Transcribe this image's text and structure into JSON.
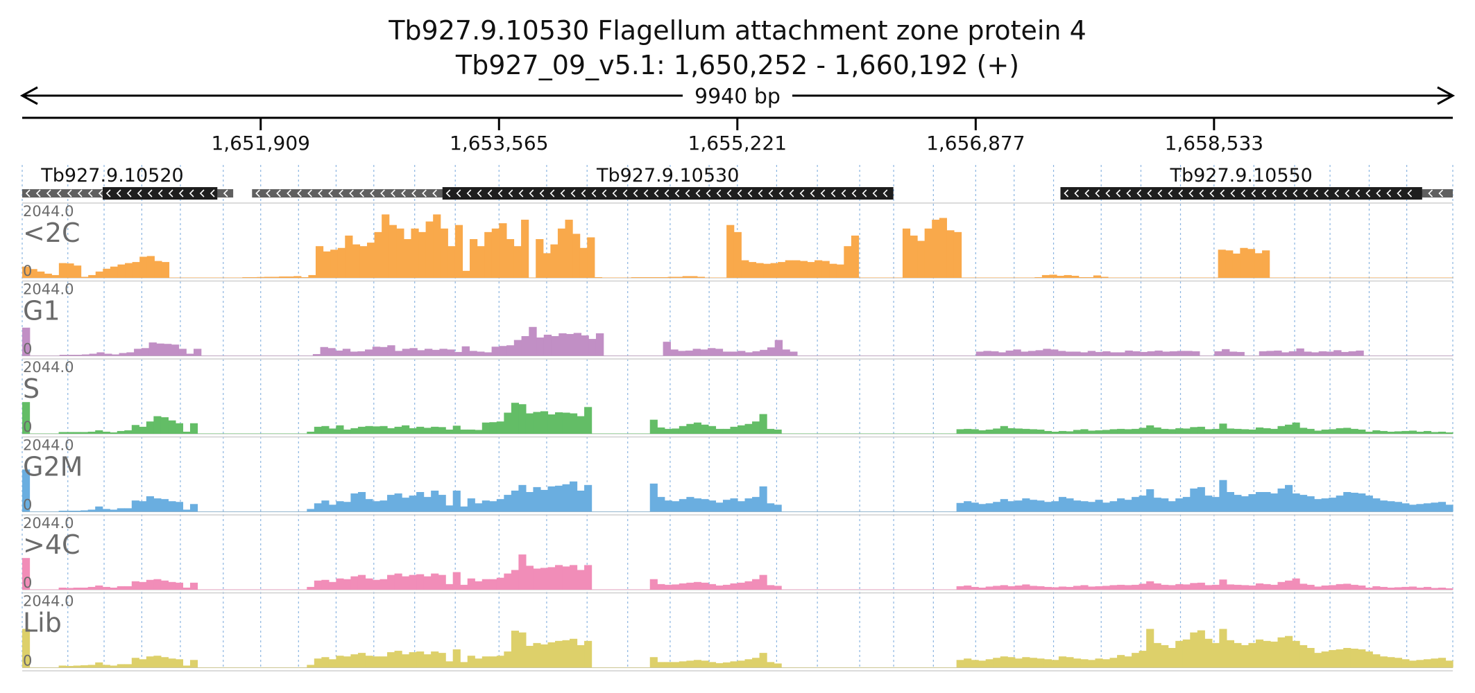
{
  "header": {
    "title": "Tb927.9.10530  Flagellum attachment zone protein 4",
    "subtitle": "Tb927_09_v5.1: 1,650,252 - 1,660,192 (+)"
  },
  "chart_data": {
    "type": "area",
    "chromosome": "Tb927_09_v5.1",
    "xlim": [
      1650252,
      1660192
    ],
    "span_label": "9940 bp",
    "ticks": [
      1651909,
      1653565,
      1655221,
      1656877,
      1658533
    ],
    "tick_labels": [
      "1,651,909",
      "1,653,565",
      "1,655,221",
      "1,656,877",
      "1,658,533"
    ],
    "gridlines": [
      1650252,
      1650569,
      1650821,
      1651083,
      1651351,
      1651649,
      1651909,
      1652172,
      1652433,
      1652695,
      1652979,
      1653261,
      1653565,
      1653896,
      1654177,
      1654459,
      1654754,
      1655025,
      1655221,
      1655494,
      1655777,
      1656071,
      1656307,
      1656583,
      1656877,
      1657144,
      1657418,
      1657749,
      1658025,
      1658300,
      1658533,
      1658810,
      1659093,
      1659339,
      1659611,
      1659872,
      1660192
    ],
    "genes": [
      {
        "name": "Tb927.9.10520",
        "strand": "-",
        "utr_start": 1650252,
        "utr_end": 1651718,
        "cds_start": 1650811,
        "cds_end": 1651608
      },
      {
        "name": "Tb927.9.10530",
        "strand": "-",
        "utr_start": 1651849,
        "utr_end": 1656274,
        "cds_start": 1653172,
        "cds_end": 1656305
      },
      {
        "name": "Tb927.9.10550",
        "strand": "-",
        "utr_start": 1657466,
        "utr_end": 1660192,
        "cds_start": 1657466,
        "cds_end": 1659979
      }
    ],
    "ylim": [
      0,
      2044.0
    ],
    "series": [
      {
        "name": "<2C",
        "color": "#f9a94b",
        "values": [
          320,
          250,
          180,
          120,
          80,
          420,
          410,
          350,
          30,
          80,
          180,
          260,
          320,
          380,
          420,
          450,
          600,
          620,
          480,
          450,
          10,
          10,
          10,
          10,
          10,
          10,
          10,
          10,
          10,
          10,
          20,
          20,
          25,
          30,
          30,
          40,
          40,
          50,
          20,
          80,
          900,
          750,
          800,
          850,
          1200,
          950,
          900,
          1000,
          1300,
          1800,
          1500,
          1400,
          1100,
          1400,
          1300,
          1600,
          1800,
          1400,
          900,
          1500,
          200,
          1100,
          900,
          1300,
          1400,
          1550,
          1100,
          900,
          1650,
          10,
          1100,
          700,
          950,
          1400,
          1650,
          1250,
          850,
          1150,
          20,
          10,
          10,
          10,
          10,
          20,
          20,
          20,
          20,
          20,
          30,
          30,
          50,
          50,
          30,
          10,
          10,
          10,
          1500,
          1300,
          500,
          450,
          420,
          400,
          420,
          450,
          500,
          500,
          480,
          450,
          500,
          480,
          400,
          380,
          900,
          1200,
          10,
          10,
          10,
          10,
          10,
          10,
          1400,
          1200,
          1050,
          1400,
          1650,
          1700,
          1350,
          1300,
          10,
          10,
          10,
          10,
          10,
          10,
          10,
          10,
          10,
          10,
          20,
          80,
          90,
          60,
          80,
          60,
          20,
          20,
          70,
          30,
          10,
          10,
          10,
          10,
          10,
          10,
          10,
          10,
          10,
          10,
          10,
          10,
          10,
          10,
          10,
          800,
          780,
          690,
          850,
          820,
          700,
          780,
          10,
          10,
          10,
          10,
          10,
          10,
          10,
          10,
          10,
          10,
          10,
          10,
          10,
          10,
          10,
          10,
          10,
          10,
          10,
          10,
          10,
          10,
          10,
          10,
          10
        ]
      },
      {
        "name": "G1",
        "color": "#c18fc5",
        "values": [
          800,
          10,
          10,
          10,
          10,
          30,
          30,
          30,
          40,
          60,
          100,
          60,
          40,
          80,
          100,
          200,
          220,
          380,
          350,
          340,
          320,
          200,
          60,
          200,
          10,
          10,
          10,
          10,
          10,
          10,
          10,
          10,
          10,
          10,
          10,
          10,
          10,
          10,
          10,
          50,
          250,
          220,
          150,
          200,
          120,
          130,
          180,
          260,
          250,
          300,
          140,
          200,
          220,
          160,
          200,
          170,
          200,
          180,
          110,
          270,
          140,
          120,
          100,
          260,
          280,
          300,
          450,
          560,
          820,
          520,
          600,
          560,
          640,
          620,
          650,
          580,
          480,
          640,
          10,
          10,
          10,
          10,
          10,
          10,
          10,
          10,
          400,
          180,
          140,
          150,
          200,
          180,
          220,
          200,
          120,
          120,
          140,
          100,
          130,
          170,
          240,
          450,
          180,
          120,
          10,
          10,
          10,
          10,
          10,
          10,
          10,
          10,
          10,
          10,
          10,
          10,
          10,
          10,
          10,
          10,
          10,
          10,
          10,
          10,
          10,
          10,
          10,
          10,
          120,
          140,
          130,
          100,
          150,
          180,
          120,
          140,
          160,
          200,
          180,
          140,
          120,
          120,
          100,
          140,
          110,
          130,
          100,
          100,
          150,
          130,
          110,
          130,
          150,
          120,
          130,
          140,
          140,
          130,
          10,
          10,
          130,
          190,
          120,
          110,
          10,
          10,
          130,
          140,
          150,
          100,
          130,
          210,
          120,
          100,
          130,
          120,
          160,
          110,
          130,
          150,
          10,
          10,
          10,
          10,
          10,
          10,
          10,
          10,
          10,
          10,
          10,
          10
        ]
      },
      {
        "name": "S",
        "color": "#63bd66",
        "values": [
          900,
          10,
          10,
          10,
          10,
          50,
          50,
          50,
          50,
          60,
          100,
          60,
          40,
          80,
          100,
          250,
          200,
          350,
          500,
          470,
          380,
          300,
          60,
          300,
          10,
          10,
          10,
          10,
          10,
          10,
          10,
          10,
          10,
          10,
          10,
          10,
          10,
          10,
          10,
          60,
          200,
          220,
          150,
          240,
          120,
          160,
          200,
          220,
          210,
          220,
          160,
          200,
          240,
          160,
          200,
          170,
          200,
          190,
          120,
          230,
          120,
          120,
          110,
          320,
          330,
          350,
          600,
          880,
          840,
          580,
          620,
          640,
          550,
          610,
          600,
          580,
          500,
          760,
          10,
          10,
          10,
          10,
          10,
          10,
          10,
          10,
          400,
          180,
          140,
          150,
          220,
          280,
          320,
          260,
          220,
          140,
          140,
          200,
          240,
          280,
          350,
          560,
          140,
          120,
          10,
          10,
          10,
          10,
          10,
          10,
          10,
          10,
          10,
          10,
          10,
          10,
          10,
          10,
          10,
          10,
          10,
          10,
          10,
          10,
          10,
          10,
          10,
          10,
          130,
          140,
          130,
          100,
          120,
          150,
          220,
          160,
          150,
          140,
          130,
          120,
          80,
          60,
          80,
          70,
          110,
          130,
          90,
          100,
          110,
          130,
          140,
          130,
          140,
          170,
          240,
          180,
          140,
          130,
          160,
          150,
          190,
          200,
          130,
          140,
          290,
          150,
          140,
          130,
          120,
          180,
          160,
          140,
          220,
          260,
          320,
          170,
          140,
          90,
          120,
          130,
          160,
          170,
          140,
          120,
          60,
          100,
          80,
          60,
          70,
          80,
          90,
          60,
          80,
          50,
          60,
          40
        ]
      },
      {
        "name": "G2M",
        "color": "#6aaee0",
        "values": [
          1200,
          10,
          10,
          10,
          10,
          30,
          30,
          30,
          40,
          60,
          150,
          80,
          60,
          100,
          100,
          320,
          300,
          440,
          380,
          360,
          300,
          280,
          60,
          220,
          10,
          10,
          10,
          10,
          10,
          10,
          10,
          10,
          10,
          10,
          10,
          10,
          10,
          10,
          10,
          80,
          240,
          320,
          200,
          300,
          280,
          520,
          560,
          360,
          300,
          320,
          480,
          520,
          400,
          460,
          560,
          420,
          600,
          480,
          180,
          600,
          150,
          380,
          240,
          320,
          300,
          360,
          480,
          600,
          760,
          560,
          700,
          620,
          720,
          740,
          780,
          860,
          600,
          760,
          10,
          10,
          10,
          10,
          10,
          10,
          10,
          10,
          800,
          420,
          320,
          300,
          360,
          420,
          380,
          360,
          320,
          260,
          340,
          380,
          300,
          380,
          420,
          720,
          240,
          200,
          10,
          10,
          10,
          10,
          10,
          10,
          10,
          10,
          10,
          10,
          10,
          10,
          10,
          10,
          10,
          10,
          10,
          10,
          10,
          10,
          10,
          10,
          10,
          10,
          250,
          300,
          260,
          220,
          240,
          280,
          360,
          300,
          320,
          380,
          340,
          320,
          280,
          300,
          420,
          380,
          320,
          300,
          280,
          340,
          260,
          300,
          380,
          340,
          420,
          460,
          640,
          400,
          380,
          300,
          380,
          420,
          660,
          700,
          460,
          420,
          900,
          560,
          480,
          440,
          500,
          560,
          560,
          520,
          660,
          760,
          520,
          480,
          440,
          360,
          380,
          400,
          460,
          560,
          540,
          520,
          460,
          380,
          320,
          300,
          280,
          240,
          200,
          220,
          240,
          260,
          280,
          200
        ]
      },
      {
        "name": ">4C",
        "color": "#f18db8",
        "values": [
          900,
          10,
          10,
          10,
          10,
          60,
          50,
          60,
          60,
          80,
          120,
          80,
          60,
          100,
          100,
          240,
          220,
          280,
          300,
          260,
          220,
          200,
          60,
          200,
          10,
          10,
          10,
          10,
          10,
          10,
          10,
          10,
          10,
          10,
          10,
          10,
          10,
          10,
          10,
          80,
          260,
          280,
          220,
          320,
          300,
          380,
          420,
          320,
          280,
          300,
          420,
          460,
          380,
          420,
          440,
          380,
          460,
          420,
          160,
          500,
          140,
          320,
          240,
          300,
          300,
          340,
          460,
          560,
          1000,
          680,
          600,
          620,
          640,
          700,
          660,
          700,
          560,
          700,
          10,
          10,
          10,
          10,
          10,
          10,
          10,
          10,
          300,
          160,
          140,
          150,
          180,
          200,
          220,
          200,
          160,
          120,
          140,
          180,
          200,
          240,
          300,
          420,
          130,
          110,
          10,
          10,
          10,
          10,
          10,
          10,
          10,
          10,
          10,
          10,
          10,
          10,
          10,
          10,
          10,
          10,
          10,
          10,
          10,
          10,
          10,
          10,
          10,
          10,
          100,
          120,
          80,
          60,
          90,
          110,
          130,
          100,
          120,
          150,
          110,
          100,
          80,
          70,
          90,
          80,
          110,
          130,
          90,
          100,
          110,
          130,
          140,
          130,
          140,
          170,
          240,
          180,
          140,
          130,
          160,
          150,
          190,
          200,
          130,
          140,
          290,
          150,
          140,
          130,
          120,
          180,
          160,
          140,
          220,
          260,
          320,
          170,
          140,
          90,
          120,
          130,
          160,
          170,
          140,
          120,
          60,
          100,
          80,
          60,
          70,
          80,
          90,
          60,
          80,
          50,
          60,
          40
        ]
      },
      {
        "name": "Lib",
        "color": "#ddd06a",
        "values": [
          1100,
          10,
          10,
          10,
          10,
          60,
          50,
          60,
          70,
          80,
          150,
          80,
          60,
          100,
          100,
          280,
          240,
          320,
          340,
          300,
          260,
          240,
          60,
          220,
          10,
          10,
          10,
          10,
          10,
          10,
          10,
          10,
          10,
          10,
          10,
          10,
          10,
          10,
          10,
          80,
          260,
          300,
          240,
          340,
          320,
          380,
          420,
          340,
          320,
          320,
          440,
          480,
          380,
          440,
          460,
          380,
          460,
          420,
          180,
          520,
          160,
          340,
          260,
          320,
          320,
          340,
          460,
          1050,
          1000,
          620,
          700,
          660,
          720,
          760,
          780,
          820,
          640,
          760,
          10,
          10,
          10,
          10,
          10,
          10,
          10,
          10,
          300,
          160,
          160,
          160,
          180,
          200,
          220,
          200,
          160,
          130,
          150,
          180,
          200,
          240,
          280,
          420,
          160,
          120,
          10,
          10,
          10,
          10,
          10,
          10,
          10,
          10,
          10,
          10,
          10,
          10,
          10,
          10,
          10,
          10,
          10,
          10,
          10,
          10,
          10,
          10,
          10,
          10,
          220,
          260,
          220,
          200,
          240,
          280,
          320,
          300,
          260,
          300,
          280,
          260,
          240,
          220,
          320,
          300,
          260,
          240,
          220,
          260,
          240,
          280,
          360,
          320,
          420,
          480,
          1100,
          700,
          640,
          560,
          760,
          800,
          1000,
          1060,
          820,
          700,
          1100,
          780,
          700,
          640,
          700,
          800,
          760,
          740,
          860,
          900,
          760,
          640,
          560,
          420,
          460,
          500,
          520,
          560,
          540,
          520,
          460,
          380,
          320,
          300,
          280,
          240,
          200,
          220,
          240,
          260,
          280,
          200
        ]
      }
    ]
  }
}
